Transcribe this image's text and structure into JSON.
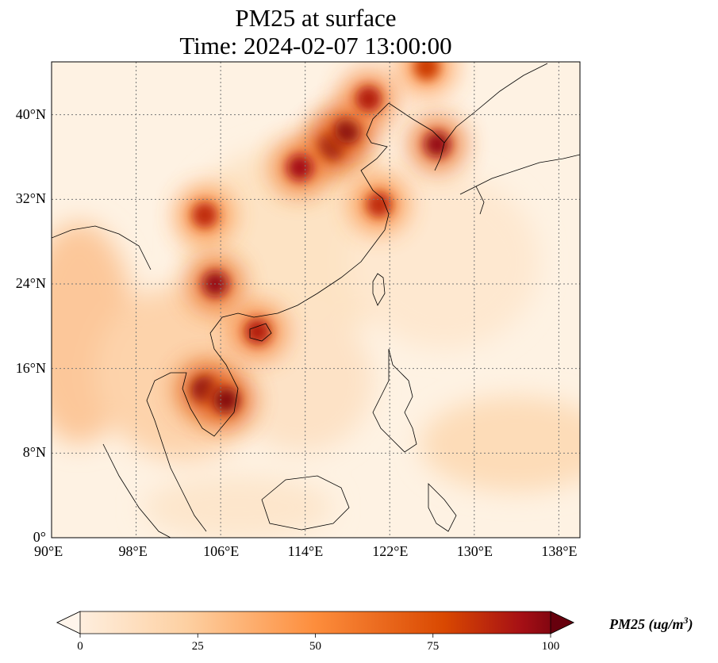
{
  "title": {
    "line1": "PM25 at surface",
    "line2": "Time: 2024-02-07 13:00:00"
  },
  "map": {
    "projection": "PlateCarree",
    "lon_range": [
      90,
      140
    ],
    "lat_range": [
      0,
      45
    ],
    "lon_ticks": [
      {
        "value": 90,
        "label": "90°E"
      },
      {
        "value": 98,
        "label": "98°E"
      },
      {
        "value": 106,
        "label": "106°E"
      },
      {
        "value": 114,
        "label": "114°E"
      },
      {
        "value": 122,
        "label": "122°E"
      },
      {
        "value": 130,
        "label": "130°E"
      },
      {
        "value": 138,
        "label": "138°E"
      }
    ],
    "lat_ticks": [
      {
        "value": 0,
        "label": "0°"
      },
      {
        "value": 8,
        "label": "8°N"
      },
      {
        "value": 16,
        "label": "16°N"
      },
      {
        "value": 24,
        "label": "24°N"
      },
      {
        "value": 32,
        "label": "32°N"
      },
      {
        "value": 40,
        "label": "40°N"
      }
    ],
    "gridlines": "dotted",
    "hotspots": [
      {
        "lon": 116.5,
        "lat": 37.0,
        "level": 95
      },
      {
        "lon": 118.0,
        "lat": 38.5,
        "level": 90
      },
      {
        "lon": 113.5,
        "lat": 35.0,
        "level": 80
      },
      {
        "lon": 121.0,
        "lat": 31.5,
        "level": 70
      },
      {
        "lon": 105.5,
        "lat": 24.0,
        "level": 85
      },
      {
        "lon": 104.5,
        "lat": 30.5,
        "level": 70
      },
      {
        "lon": 104.5,
        "lat": 14.0,
        "level": 95
      },
      {
        "lon": 106.5,
        "lat": 13.0,
        "level": 90
      },
      {
        "lon": 109.5,
        "lat": 19.5,
        "level": 75
      },
      {
        "lon": 126.5,
        "lat": 37.2,
        "level": 85
      },
      {
        "lon": 120.0,
        "lat": 41.5,
        "level": 75
      },
      {
        "lon": 125.5,
        "lat": 44.5,
        "level": 65
      }
    ]
  },
  "colorbar": {
    "ticks": [
      "0",
      "25",
      "50",
      "75",
      "100"
    ],
    "tick_values": [
      0,
      25,
      50,
      75,
      100
    ],
    "range": [
      0,
      100
    ],
    "extend": "both",
    "colormap": [
      "#fff5eb",
      "#fdd0a2",
      "#fd8d3c",
      "#d94801",
      "#a50f15",
      "#67000d"
    ],
    "label": "PM25 (ug/m",
    "label_exponent": "3",
    "label_close": ")"
  }
}
